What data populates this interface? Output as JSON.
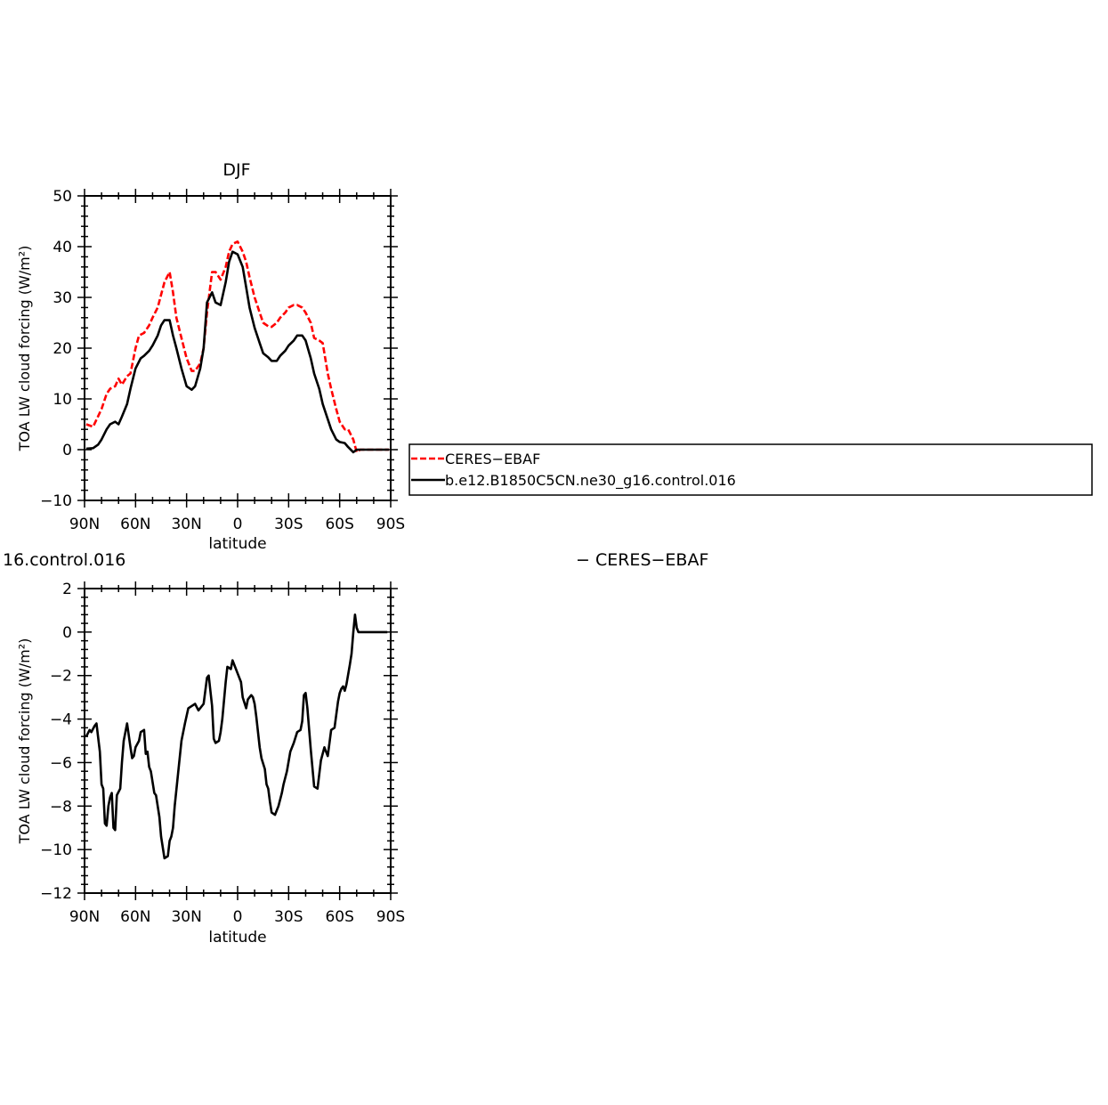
{
  "chart_data": [
    {
      "type": "line",
      "title": "DJF",
      "xlabel": "latitude",
      "ylabel": "TOA LW cloud forcing (W/m²)",
      "xlim": [
        90,
        -90
      ],
      "ylim": [
        -10,
        50
      ],
      "x_ticks": [
        90,
        60,
        30,
        0,
        -30,
        -60,
        -90
      ],
      "x_tick_labels": [
        "90N",
        "60N",
        "30N",
        "0",
        "30S",
        "60S",
        "90S"
      ],
      "y_ticks": [
        -10,
        0,
        10,
        20,
        30,
        40,
        50
      ],
      "y_tick_labels": [
        "−10",
        "0",
        "10",
        "20",
        "30",
        "40",
        "50"
      ],
      "grid": false,
      "legend_position": "right",
      "series": [
        {
          "name": "CERES−EBAF",
          "color": "#ff0000",
          "dash": "dashed",
          "x": [
            89,
            85,
            80,
            77,
            75,
            72,
            70,
            68,
            65,
            63,
            60,
            58,
            55,
            52,
            50,
            47,
            45,
            43,
            40,
            38,
            36,
            33,
            30,
            27,
            25,
            22,
            20,
            18,
            15,
            13,
            10,
            7,
            5,
            3,
            0,
            -3,
            -5,
            -7,
            -10,
            -13,
            -15,
            -18,
            -20,
            -23,
            -25,
            -28,
            -30,
            -33,
            -35,
            -38,
            -40,
            -43,
            -45,
            -48,
            -50,
            -53,
            -55,
            -58,
            -60,
            -63,
            -65,
            -68,
            -70,
            -72,
            -75,
            -77,
            -80,
            -83,
            -85,
            -87,
            -89
          ],
          "y": [
            5,
            4.5,
            8,
            11,
            12,
            12.5,
            14,
            12.8,
            14.5,
            15,
            20,
            22.5,
            23,
            24.5,
            26,
            28,
            30.5,
            33,
            35,
            31,
            26,
            22,
            18,
            15.5,
            15.5,
            17,
            20,
            27,
            35,
            35,
            33.5,
            36,
            39,
            40.5,
            41,
            39,
            37,
            34,
            30,
            27,
            25,
            24.3,
            24.2,
            25,
            26,
            27,
            28,
            28.5,
            28.5,
            28,
            27,
            25,
            22,
            21.5,
            21,
            15,
            12,
            8,
            5.5,
            4,
            4,
            2,
            -0.5,
            0,
            0,
            0,
            0,
            0,
            0,
            0,
            0
          ]
        },
        {
          "name": "b.e12.B1850C5CN.ne30_g16.control.016",
          "color": "#000000",
          "dash": "solid",
          "x": [
            89,
            85,
            82,
            80,
            77,
            75,
            72,
            70,
            68,
            65,
            63,
            60,
            57,
            55,
            52,
            50,
            47,
            45,
            43,
            40,
            38,
            36,
            33,
            30,
            27,
            25,
            22,
            20,
            18,
            15,
            13,
            10,
            7,
            5,
            3,
            0,
            -3,
            -5,
            -7,
            -10,
            -13,
            -15,
            -18,
            -20,
            -23,
            -25,
            -28,
            -30,
            -33,
            -35,
            -38,
            -40,
            -43,
            -45,
            -48,
            -50,
            -53,
            -55,
            -58,
            -60,
            -63,
            -65,
            -68,
            -70,
            -72,
            -75,
            -77,
            -80,
            -83,
            -85,
            -87,
            -89
          ],
          "y": [
            0.2,
            0.3,
            1,
            2,
            4,
            5,
            5.5,
            5,
            6.5,
            9,
            12,
            16,
            18,
            18.5,
            19.5,
            20.5,
            22.5,
            24.5,
            25.5,
            25.5,
            22.5,
            20,
            16,
            12.5,
            11.8,
            12.5,
            16,
            20,
            29,
            31,
            29,
            28.5,
            33,
            37,
            39,
            38.5,
            36,
            32,
            28,
            24,
            21,
            19,
            18.2,
            17.5,
            17.5,
            18.5,
            19.5,
            20.5,
            21.5,
            22.5,
            22.5,
            21.5,
            18,
            15,
            12,
            9,
            6,
            4,
            2,
            1.5,
            1.3,
            0.5,
            -0.5,
            0,
            0,
            0,
            0,
            0,
            0,
            0,
            0,
            0
          ]
        }
      ]
    },
    {
      "type": "line",
      "title": "16.control.016",
      "title_right": "− CERES−EBAF",
      "xlabel": "latitude",
      "ylabel": "TOA LW cloud forcing (W/m²)",
      "xlim": [
        90,
        -90
      ],
      "ylim": [
        -12,
        2
      ],
      "x_ticks": [
        90,
        60,
        30,
        0,
        -30,
        -60,
        -90
      ],
      "x_tick_labels": [
        "90N",
        "60N",
        "30N",
        "0",
        "30S",
        "60S",
        "90S"
      ],
      "y_ticks": [
        -12,
        -10,
        -8,
        -6,
        -4,
        -2,
        0,
        2
      ],
      "y_tick_labels": [
        "−12",
        "−10",
        "−8",
        "−6",
        "−4",
        "−2",
        "0",
        "2"
      ],
      "grid": false,
      "series": [
        {
          "color": "#000000",
          "dash": "solid",
          "x": [
            89,
            87,
            86,
            84,
            83,
            81,
            80,
            79,
            78,
            77,
            76,
            75,
            74,
            73,
            72,
            71,
            69,
            68,
            67,
            65,
            63,
            62,
            61,
            60,
            58,
            57,
            55,
            54,
            53,
            52,
            51,
            49,
            48,
            46,
            45,
            43,
            41,
            40,
            39,
            38,
            37,
            35,
            33,
            31,
            29,
            27,
            25,
            23,
            20,
            18,
            17,
            15,
            14,
            13,
            11,
            10,
            9,
            7,
            6,
            4,
            3,
            1,
            0,
            -2,
            -3,
            -5,
            -6,
            -8,
            -9,
            -10,
            -11,
            -12,
            -13,
            -14,
            -16,
            -17,
            -18,
            -19,
            -20,
            -22,
            -24,
            -26,
            -27,
            -29,
            -31,
            -33,
            -35,
            -37,
            -38,
            -39,
            -40,
            -41,
            -43,
            -45,
            -47,
            -49,
            -51,
            -53,
            -55,
            -57,
            -59,
            -60,
            -61,
            -62,
            -63,
            -64,
            -66,
            -67,
            -68,
            -69,
            -70,
            -71,
            -72,
            -73,
            -74,
            -76,
            -77,
            -79,
            -81,
            -82,
            -83,
            -84,
            -85,
            -86,
            -87,
            -88
          ],
          "y": [
            -4.8,
            -4.5,
            -4.6,
            -4.3,
            -4.2,
            -5.5,
            -7,
            -7.2,
            -8.8,
            -8.9,
            -8,
            -7.6,
            -7.4,
            -9,
            -9.1,
            -7.5,
            -7.2,
            -6,
            -5,
            -4.2,
            -5.3,
            -5.8,
            -5.7,
            -5.3,
            -5,
            -4.6,
            -4.5,
            -5.6,
            -5.5,
            -6.2,
            -6.4,
            -7.4,
            -7.5,
            -8.5,
            -9.4,
            -10.4,
            -10.3,
            -9.6,
            -9.4,
            -9,
            -8,
            -6.5,
            -5,
            -4.2,
            -3.5,
            -3.4,
            -3.3,
            -3.6,
            -3.3,
            -2.1,
            -2,
            -3.4,
            -4.9,
            -5.1,
            -5,
            -4.6,
            -4,
            -2.3,
            -1.6,
            -1.7,
            -1.3,
            -1.7,
            -1.9,
            -2.3,
            -3,
            -3.5,
            -3.1,
            -2.9,
            -3,
            -3.3,
            -3.9,
            -4.6,
            -5.3,
            -5.8,
            -6.3,
            -7,
            -7.2,
            -7.8,
            -8.3,
            -8.4,
            -8.0,
            -7.4,
            -7.0,
            -6.4,
            -5.5,
            -5.1,
            -4.6,
            -4.5,
            -4.1,
            -2.9,
            -2.8,
            -3.5,
            -5.4,
            -7.1,
            -7.2,
            -5.9,
            -5.3,
            -5.7,
            -4.5,
            -4.4,
            -3.2,
            -2.8,
            -2.6,
            -2.5,
            -2.7,
            -2.4,
            -1.5,
            -1,
            0,
            0.8,
            0.2,
            0,
            0,
            0,
            0,
            0,
            0,
            0,
            0,
            0,
            0,
            0,
            0,
            0,
            0,
            0
          ]
        }
      ]
    }
  ],
  "legend": {
    "entries": [
      "CERES−EBAF",
      "b.e12.B1850C5CN.ne30_g16.control.016"
    ]
  }
}
